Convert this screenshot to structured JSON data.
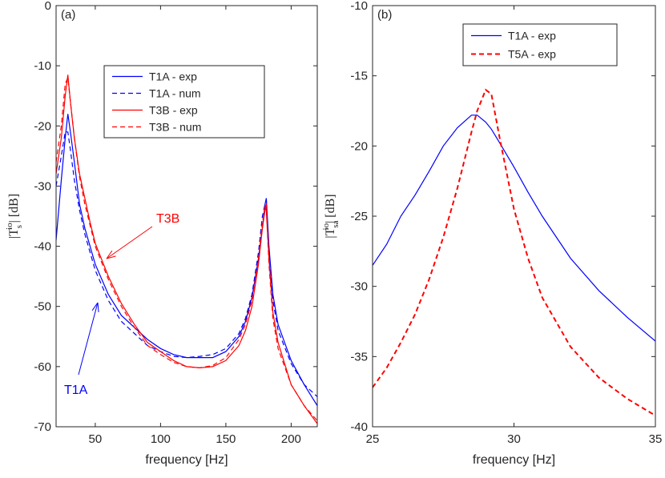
{
  "chart_data": [
    {
      "type": "line",
      "panel_label": "(a)",
      "xlabel": "frequency   [Hz]",
      "ylabel": {
        "prefix": "|T",
        "sub": "s",
        "sup": "io",
        "suffix": "|  [dB]"
      },
      "xlim": [
        20,
        220
      ],
      "xticks": [
        50,
        100,
        150,
        200
      ],
      "ylim": [
        -70,
        0
      ],
      "yticks": [
        0,
        -10,
        -20,
        -30,
        -40,
        -50,
        -60,
        -70
      ],
      "legend": "upper right",
      "x": [
        20,
        24,
        27,
        29,
        31,
        34,
        38,
        42,
        46,
        50,
        60,
        70,
        80,
        90,
        100,
        110,
        120,
        130,
        140,
        150,
        160,
        165,
        170,
        175,
        178,
        180,
        181,
        183,
        186,
        190,
        200,
        210,
        220
      ],
      "series": [
        {
          "name": "T1A - exp",
          "color": "#0000ff",
          "style": "solid",
          "values": [
            -39,
            -29,
            -22,
            -18,
            -21,
            -26,
            -33,
            -37,
            -40,
            -43,
            -48,
            -51.5,
            -53.5,
            -55.5,
            -57,
            -58,
            -58.5,
            -58.5,
            -58.5,
            -57.5,
            -55,
            -52.5,
            -48.5,
            -42,
            -37,
            -33,
            -32,
            -40,
            -48,
            -53,
            -59,
            -63,
            -66.5
          ]
        },
        {
          "name": "T1A - num",
          "color": "#0000ff",
          "style": "dashed",
          "values": [
            -30,
            -25,
            -21,
            -21,
            -24,
            -29,
            -34,
            -38,
            -41,
            -44,
            -49,
            -52.5,
            -54.5,
            -56.5,
            -57.5,
            -58.3,
            -58.5,
            -58.3,
            -58,
            -57,
            -54.5,
            -52,
            -48,
            -41,
            -35,
            -33,
            -34,
            -42,
            -49,
            -54,
            -59.5,
            -63,
            -65
          ]
        },
        {
          "name": "T3B - exp",
          "color": "#ff0000",
          "style": "solid",
          "values": [
            -28,
            -22,
            -15,
            -11.5,
            -16,
            -22,
            -28,
            -32,
            -36,
            -39.5,
            -45,
            -49.5,
            -53,
            -56,
            -57.5,
            -59,
            -60,
            -60.2,
            -60,
            -59,
            -56.5,
            -54,
            -50,
            -43,
            -37,
            -34,
            -33,
            -42,
            -51,
            -56,
            -63,
            -66.5,
            -69.5
          ]
        },
        {
          "name": "T3B - num",
          "color": "#ff0000",
          "style": "dashed",
          "values": [
            -26,
            -20,
            -13,
            -12,
            -16,
            -22,
            -28.5,
            -33,
            -36.5,
            -40,
            -45.5,
            -50,
            -53.5,
            -56.5,
            -58,
            -59.3,
            -60,
            -60.2,
            -59.8,
            -58.5,
            -55.5,
            -53,
            -49,
            -42,
            -36,
            -33.5,
            -34,
            -43,
            -52,
            -57,
            -63,
            -66.5,
            -69
          ]
        }
      ],
      "annotations": [
        {
          "text": "T3B",
          "color": "#ff0000"
        },
        {
          "text": "T1A",
          "color": "#0000ff"
        }
      ]
    },
    {
      "type": "line",
      "panel_label": "(b)",
      "xlabel": "frequency   [Hz]",
      "ylabel": {
        "prefix": "|T",
        "sub": "sa",
        "sup": "io",
        "suffix": "|  [dB]"
      },
      "xlim": [
        25,
        35
      ],
      "xticks": [
        25,
        30,
        35
      ],
      "ylim": [
        -40,
        -10
      ],
      "yticks": [
        -10,
        -15,
        -20,
        -25,
        -30,
        -35,
        -40
      ],
      "legend": "upper right",
      "x": [
        25,
        25.5,
        26,
        26.5,
        27,
        27.5,
        28,
        28.5,
        28.7,
        29,
        29.2,
        29.5,
        30,
        30.5,
        31,
        32,
        33,
        34,
        35
      ],
      "series": [
        {
          "name": "T1A - exp",
          "color": "#0000ff",
          "style": "solid",
          "values": [
            -28.5,
            -27,
            -25,
            -23.5,
            -21.8,
            -20,
            -18.7,
            -17.8,
            -17.8,
            -18.3,
            -18.8,
            -19.8,
            -21.5,
            -23.3,
            -25,
            -28,
            -30.3,
            -32.2,
            -33.9
          ]
        },
        {
          "name": "T5A - exp",
          "color": "#ff0000",
          "style": "dashed",
          "values": [
            -37.2,
            -35.8,
            -34,
            -32,
            -29.5,
            -26.5,
            -23,
            -19,
            -17.5,
            -16,
            -16.3,
            -19.5,
            -24.5,
            -28,
            -30.8,
            -34.3,
            -36.5,
            -38,
            -39.2
          ]
        }
      ]
    }
  ]
}
